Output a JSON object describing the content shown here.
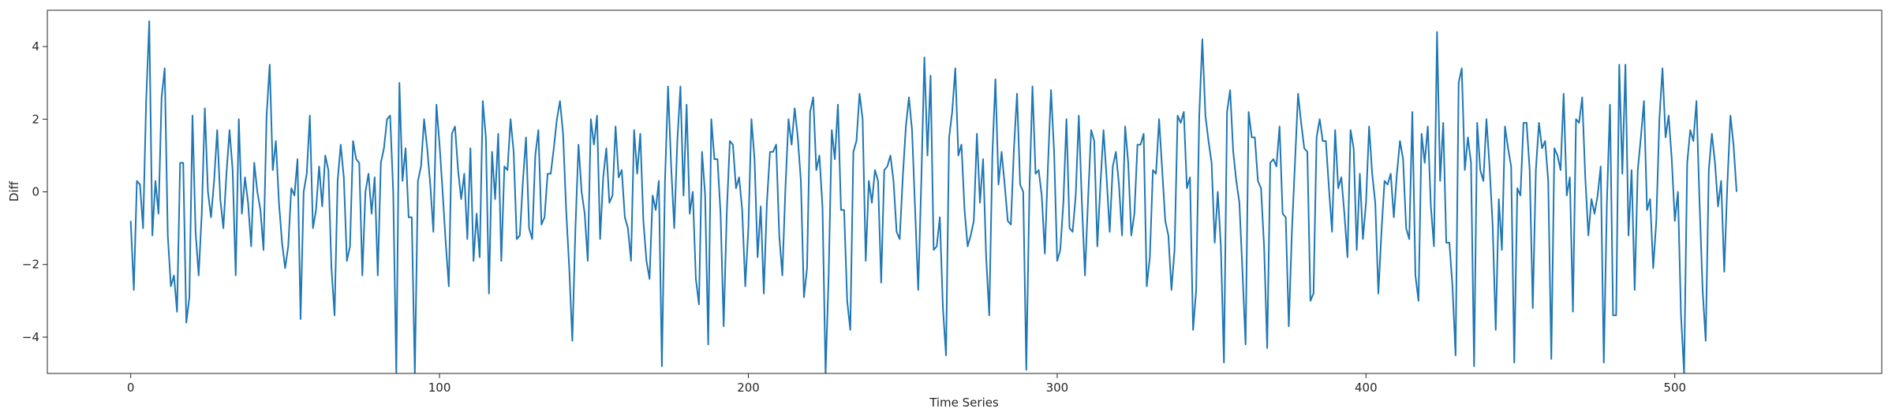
{
  "chart_data": {
    "type": "line",
    "title": "",
    "xlabel": "Time Series",
    "ylabel": "Diff",
    "xlim": [
      -27,
      567
    ],
    "ylim": [
      -5,
      5
    ],
    "xticks": [
      0,
      100,
      200,
      300,
      400,
      500
    ],
    "xtick_labels": [
      "0",
      "100",
      "200",
      "300",
      "400",
      "500"
    ],
    "yticks": [
      -4,
      -2,
      0,
      2,
      4
    ],
    "ytick_labels": [
      "−4",
      "−2",
      "0",
      "2",
      "4"
    ],
    "grid": false,
    "line_color": "#1f77b4",
    "series": [
      {
        "values": [
          -0.8,
          -2.7,
          0.3,
          0.2,
          -1.0,
          2.5,
          4.7,
          -1.2,
          0.3,
          -0.6,
          2.6,
          3.4,
          -1.2,
          -2.6,
          -2.3,
          -3.3,
          0.8,
          0.8,
          -3.6,
          -2.9,
          2.1,
          -1.1,
          -2.3,
          -0.6,
          2.3,
          0.0,
          -0.7,
          0.3,
          1.7,
          -0.2,
          -1.0,
          0.5,
          1.7,
          0.6,
          -2.3,
          2.0,
          -0.6,
          0.4,
          -0.3,
          -1.5,
          0.8,
          0.0,
          -0.5,
          -1.6,
          2.1,
          3.5,
          0.6,
          1.4,
          -0.3,
          -1.4,
          -2.1,
          -1.5,
          0.1,
          -0.1,
          0.9,
          -3.5,
          0.0,
          0.5,
          2.1,
          -1.0,
          -0.5,
          0.7,
          -0.4,
          1.0,
          0.6,
          -2.1,
          -3.4,
          0.3,
          1.3,
          0.4,
          -1.9,
          -1.5,
          1.4,
          0.9,
          0.8,
          -2.3,
          0.0,
          0.5,
          -0.6,
          0.4,
          -2.3,
          0.8,
          1.2,
          2.0,
          2.1,
          0.0,
          -5.0,
          3.0,
          0.3,
          1.2,
          -0.7,
          -0.7,
          -5.0,
          0.3,
          0.7,
          2.0,
          1.2,
          0.2,
          -1.1,
          2.4,
          1.3,
          0.0,
          -1.4,
          -2.6,
          1.6,
          1.8,
          0.6,
          -0.2,
          0.5,
          -1.3,
          1.2,
          -1.9,
          -0.6,
          -1.8,
          2.5,
          1.5,
          -2.8,
          1.1,
          -0.2,
          1.6,
          -1.9,
          0.7,
          0.6,
          2.0,
          1.1,
          -1.3,
          -1.2,
          0.3,
          1.5,
          -1.0,
          -1.3,
          1.0,
          1.7,
          -0.9,
          -0.7,
          0.5,
          0.5,
          1.2,
          2.0,
          2.5,
          1.6,
          -0.5,
          -2.1,
          -4.1,
          -1.0,
          1.3,
          0.0,
          -0.6,
          -1.9,
          2.0,
          1.3,
          2.1,
          -1.3,
          0.4,
          1.2,
          -0.3,
          -0.1,
          1.8,
          0.4,
          0.6,
          -0.7,
          -1.0,
          -1.9,
          1.7,
          0.5,
          1.6,
          -0.8,
          -1.9,
          -2.4,
          -0.1,
          -0.5,
          0.3,
          -4.8,
          0.3,
          2.9,
          0.7,
          -1.0,
          1.4,
          2.9,
          -0.1,
          2.4,
          -0.6,
          0.0,
          -2.4,
          -3.1,
          1.1,
          -0.1,
          -4.2,
          2.0,
          0.9,
          0.9,
          -0.6,
          -3.7,
          -0.6,
          1.4,
          1.3,
          0.1,
          0.4,
          -0.5,
          -2.6,
          -1.0,
          2.0,
          0.9,
          -1.8,
          -0.4,
          -2.8,
          -0.3,
          1.1,
          1.1,
          1.3,
          -1.2,
          -2.3,
          0.1,
          2.0,
          1.3,
          2.3,
          1.5,
          0.3,
          -2.9,
          -2.1,
          2.2,
          2.6,
          0.6,
          1.0,
          -0.4,
          -5.0,
          -2.3,
          1.7,
          0.9,
          2.4,
          -0.5,
          -0.5,
          -3.0,
          -3.8,
          1.1,
          1.4,
          2.7,
          2.0,
          -1.9,
          0.3,
          -0.3,
          0.6,
          0.3,
          -2.5,
          0.6,
          0.7,
          1.0,
          0.3,
          -1.1,
          -1.3,
          0.4,
          1.8,
          2.6,
          1.7,
          -0.5,
          -2.7,
          0.3,
          3.7,
          1.0,
          3.2,
          -1.6,
          -1.5,
          -0.7,
          -3.2,
          -4.5,
          1.5,
          2.2,
          3.4,
          1.0,
          1.3,
          -0.5,
          -1.5,
          -1.2,
          -0.8,
          1.6,
          -0.3,
          0.9,
          -1.8,
          -3.4,
          1.0,
          3.1,
          0.2,
          1.1,
          0.2,
          -0.8,
          -0.9,
          1.2,
          2.7,
          0.2,
          0.0,
          -4.9,
          0.0,
          2.9,
          0.5,
          0.6,
          -0.1,
          -1.7,
          0.7,
          2.8,
          1.1,
          -1.9,
          -1.6,
          -0.3,
          2.0,
          -1.0,
          -1.1,
          -0.1,
          2.1,
          -0.3,
          -2.3,
          -0.2,
          1.7,
          1.4,
          -1.5,
          0.2,
          1.7,
          0.4,
          -1.1,
          0.7,
          1.1,
          0.2,
          -1.2,
          1.8,
          0.8,
          -1.2,
          -0.6,
          1.3,
          1.3,
          1.6,
          -2.6,
          -1.8,
          0.6,
          0.5,
          2.0,
          0.6,
          -0.8,
          -1.2,
          -2.7,
          -1.6,
          2.1,
          1.9,
          2.2,
          0.1,
          0.4,
          -3.8,
          -2.7,
          2.1,
          4.2,
          2.1,
          1.4,
          0.8,
          -1.4,
          0.0,
          -1.5,
          -4.7,
          2.2,
          2.8,
          1.1,
          0.3,
          -0.3,
          -2.2,
          -4.2,
          2.2,
          1.5,
          1.5,
          0.3,
          0.1,
          -1.5,
          -4.3,
          0.8,
          0.9,
          0.7,
          1.8,
          -0.6,
          -0.7,
          -3.7,
          -1.1,
          0.8,
          2.7,
          1.9,
          1.2,
          1.1,
          -3.0,
          -2.8,
          1.5,
          2.0,
          1.4,
          1.4,
          0.1,
          -1.1,
          1.7,
          0.1,
          0.4,
          -0.6,
          -1.8,
          1.7,
          1.2,
          -1.6,
          0.5,
          -1.3,
          -0.3,
          1.8,
          0.5,
          -0.3,
          -2.8,
          -1.1,
          0.3,
          0.2,
          0.5,
          -0.7,
          0.5,
          1.4,
          0.9,
          -1.0,
          -1.3,
          2.2,
          -2.3,
          -3.0,
          1.6,
          0.8,
          1.8,
          -0.4,
          -1.5,
          4.4,
          0.3,
          1.9,
          -1.4,
          -1.4,
          -2.6,
          -4.5,
          3.0,
          3.4,
          0.6,
          1.5,
          0.8,
          -4.8,
          1.9,
          0.6,
          0.3,
          2.0,
          0.7,
          -0.9,
          -3.8,
          -0.2,
          -1.6,
          1.8,
          1.2,
          0.7,
          -4.7,
          0.1,
          -0.1,
          1.9,
          1.9,
          0.6,
          -3.2,
          0.6,
          1.9,
          1.2,
          1.4,
          0.3,
          -4.6,
          1.2,
          1.0,
          0.6,
          2.7,
          -0.1,
          0.4,
          -3.3,
          2.0,
          1.9,
          2.6,
          0.4,
          -1.2,
          -0.2,
          -0.6,
          -0.1,
          0.7,
          -4.7,
          -0.3,
          2.4,
          -3.4,
          -3.4,
          3.5,
          0.5,
          3.5,
          -1.2,
          0.6,
          -2.7,
          0.6,
          1.5,
          2.5,
          -0.5,
          -0.2,
          -2.1,
          -0.8,
          2.0,
          3.4,
          1.5,
          2.1,
          0.9,
          -0.8,
          0.0,
          -3.4,
          -5.0,
          0.8,
          1.7,
          1.4,
          2.5,
          -0.3,
          -2.7,
          -4.1,
          0.6,
          1.6,
          0.8,
          -0.4,
          0.3,
          -2.2,
          0.2,
          2.1,
          1.3,
          0.0
        ]
      }
    ]
  }
}
